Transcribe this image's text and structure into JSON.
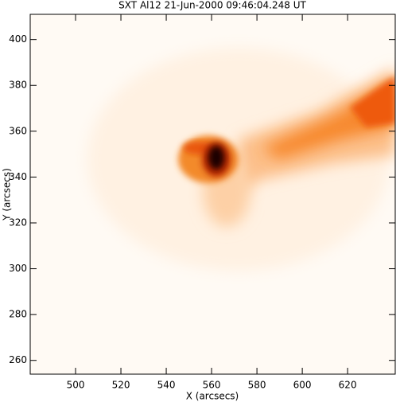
{
  "chart_data": {
    "type": "image",
    "title": "SXT Al12 21-Jun-2000 09:46:04.248 UT",
    "x_label": "X (arcsecs)",
    "y_label": "Y (arcsecs)",
    "xlim": [
      480,
      641
    ],
    "ylim": [
      254,
      411
    ],
    "xticks": [
      500,
      520,
      540,
      560,
      580,
      600,
      620
    ],
    "yticks": [
      260,
      280,
      300,
      320,
      340,
      360,
      380,
      400
    ]
  }
}
